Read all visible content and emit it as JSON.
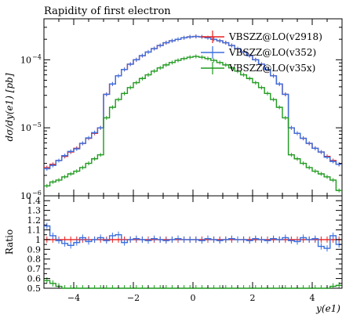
{
  "chart_data": {
    "type": "line",
    "title": "Rapidity of first electron",
    "xlabel": "y(e1)",
    "ylabel": "dσ/dy(e1) [pb]",
    "ratio_ylabel": "Ratio",
    "xlim": [
      -5,
      5
    ],
    "ylim": [
      1e-06,
      0.0004
    ],
    "yscale": "log",
    "ratio_ylim": [
      0.5,
      1.45
    ],
    "legend_position": "top-right",
    "x_ticks": [
      -4,
      -2,
      0,
      2,
      4
    ],
    "x_tick_labels": [
      "−4",
      "−2",
      "0",
      "2",
      "4"
    ],
    "y_ticks": [
      1e-06,
      1e-05,
      0.0001
    ],
    "y_tick_labels": [
      "10",
      "10",
      "10"
    ],
    "y_tick_exponents": [
      "−6",
      "−5",
      "−4"
    ],
    "ratio_ticks": [
      0.5,
      0.6,
      0.7,
      0.8,
      0.9,
      1.0,
      1.1,
      1.2,
      1.3,
      1.4
    ],
    "ratio_tick_labels": [
      "0.5",
      "0.6",
      "0.7",
      "0.8",
      "0.9",
      "1",
      "1.1",
      "1.2",
      "1.3",
      "1.4"
    ],
    "bin_edges": [
      -5.0,
      -4.8,
      -4.6,
      -4.4,
      -4.2,
      -4.0,
      -3.8,
      -3.6,
      -3.4,
      -3.2,
      -3.0,
      -2.8,
      -2.6,
      -2.4,
      -2.2,
      -2.0,
      -1.8,
      -1.6,
      -1.4,
      -1.2,
      -1.0,
      -0.8,
      -0.6,
      -0.4,
      -0.2,
      0.0,
      0.2,
      0.4,
      0.6,
      0.8,
      1.0,
      1.2,
      1.4,
      1.6,
      1.8,
      2.0,
      2.2,
      2.4,
      2.6,
      2.8,
      3.0,
      3.2,
      3.4,
      3.6,
      3.8,
      4.0,
      4.2,
      4.4,
      4.6,
      4.8,
      5.0
    ],
    "series": [
      {
        "name": "VBSZZ@LO(v2918)",
        "color": "#e8201f",
        "values": [
          2.6e-06,
          2.9e-06,
          3.3e-06,
          3.8e-06,
          4.4e-06,
          5e-06,
          5.9e-06,
          7e-06,
          8.3e-06,
          1e-05,
          3.1e-05,
          4.4e-05,
          5.8e-05,
          7.2e-05,
          8.6e-05,
          0.0001,
          0.000115,
          0.00013,
          0.000146,
          0.000162,
          0.000178,
          0.00019,
          0.0002,
          0.00021,
          0.000217,
          0.00022,
          0.000217,
          0.00021,
          0.0002,
          0.00019,
          0.000178,
          0.000162,
          0.000146,
          0.00013,
          0.000115,
          0.0001,
          8.6e-05,
          7.2e-05,
          5.8e-05,
          4.4e-05,
          3.1e-05,
          1e-05,
          8.3e-06,
          7e-06,
          5.9e-06,
          5e-06,
          4.4e-06,
          3.8e-06,
          3.3e-06,
          2.9e-06
        ],
        "ratio": [
          1.0,
          1.0,
          1.0,
          1.0,
          1.0,
          1.0,
          1.0,
          1.0,
          1.0,
          1.0,
          1.0,
          1.0,
          1.0,
          1.0,
          1.0,
          1.0,
          1.0,
          1.0,
          1.0,
          1.0,
          1.0,
          1.0,
          1.0,
          1.0,
          1.0,
          1.0,
          1.0,
          1.0,
          1.0,
          1.0,
          1.0,
          1.0,
          1.0,
          1.0,
          1.0,
          1.0,
          1.0,
          1.0,
          1.0,
          1.0,
          1.0,
          1.0,
          1.0,
          1.0,
          1.0,
          1.0,
          1.0,
          1.0,
          1.0,
          1.0
        ]
      },
      {
        "name": "VBSZZ@LO(v352)",
        "color": "#3a6fe0",
        "values": [
          2.5e-06,
          2.8e-06,
          3.3e-06,
          3.9e-06,
          4.5e-06,
          4.9e-06,
          5.9e-06,
          7.1e-06,
          8.5e-06,
          1e-05,
          3.1e-05,
          4.4e-05,
          5.8e-05,
          7.2e-05,
          8.6e-05,
          0.0001,
          0.000115,
          0.00013,
          0.000146,
          0.000162,
          0.000178,
          0.00019,
          0.0002,
          0.00021,
          0.000217,
          0.00022,
          0.000217,
          0.00021,
          0.0002,
          0.00019,
          0.000178,
          0.000162,
          0.000146,
          0.00013,
          0.000115,
          0.0001,
          8.6e-05,
          7.2e-05,
          5.8e-05,
          4.4e-05,
          3.1e-05,
          1e-05,
          8.3e-06,
          7e-06,
          5.9e-06,
          5e-06,
          4.4e-06,
          3.7e-06,
          3.2e-06,
          2.9e-06
        ],
        "ratio": [
          1.14,
          1.04,
          0.99,
          0.96,
          0.94,
          0.97,
          1.02,
          0.98,
          1.0,
          1.02,
          0.99,
          1.04,
          1.05,
          0.97,
          1.0,
          1.01,
          1.0,
          0.99,
          1.01,
          1.0,
          0.99,
          1.0,
          1.01,
          1.0,
          1.0,
          1.0,
          0.99,
          1.01,
          1.0,
          0.99,
          1.0,
          1.01,
          1.0,
          1.0,
          0.99,
          1.01,
          1.0,
          0.99,
          1.01,
          1.0,
          1.02,
          0.99,
          0.98,
          1.02,
          1.0,
          1.01,
          0.93,
          0.91,
          1.04,
          0.95
        ]
      },
      {
        "name": "VBSZZ@LO(v35x)",
        "color": "#1f9a1f",
        "values": [
          1.4e-06,
          1.6e-06,
          1.7e-06,
          1.9e-06,
          2.1e-06,
          2.3e-06,
          2.6e-06,
          3e-06,
          3.5e-06,
          4e-06,
          1.4e-05,
          2e-05,
          2.6e-05,
          3.2e-05,
          3.9e-05,
          4.6e-05,
          5.3e-05,
          6e-05,
          6.8e-05,
          7.6e-05,
          8.4e-05,
          9.1e-05,
          9.8e-05,
          0.000104,
          0.000109,
          0.000112,
          0.000109,
          0.000104,
          9.8e-05,
          9.1e-05,
          8.4e-05,
          7.6e-05,
          6.8e-05,
          6e-05,
          5.3e-05,
          4.6e-05,
          3.9e-05,
          3.2e-05,
          2.6e-05,
          2e-05,
          1.4e-05,
          4e-06,
          3.5e-06,
          3e-06,
          2.6e-06,
          2.3e-06,
          2.1e-06,
          1.9e-06,
          1.7e-06,
          1.2e-06
        ],
        "ratio": [
          0.58,
          0.55,
          0.52,
          0.5,
          0.5,
          0.49,
          0.49,
          0.49,
          0.49,
          0.49,
          0.48,
          0.48,
          0.48,
          0.48,
          0.48,
          0.48,
          0.48,
          0.48,
          0.48,
          0.48,
          0.48,
          0.48,
          0.48,
          0.48,
          0.48,
          0.48,
          0.48,
          0.48,
          0.48,
          0.48,
          0.48,
          0.48,
          0.48,
          0.48,
          0.48,
          0.48,
          0.48,
          0.48,
          0.48,
          0.48,
          0.48,
          0.49,
          0.49,
          0.49,
          0.49,
          0.49,
          0.5,
          0.5,
          0.52,
          0.53
        ]
      }
    ]
  }
}
